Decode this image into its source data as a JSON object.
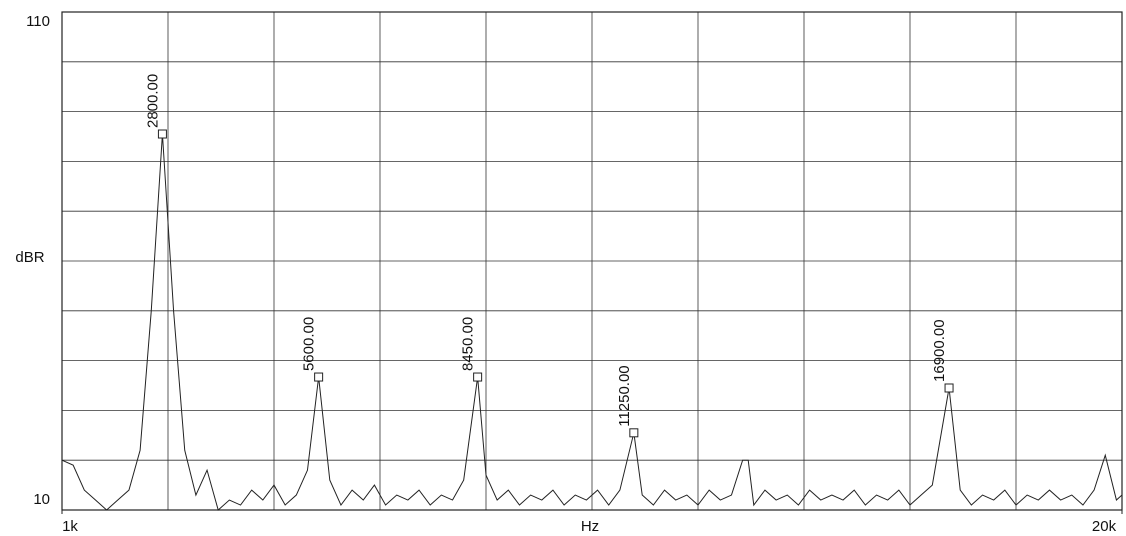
{
  "chart_data": {
    "type": "line",
    "ylabel": "dBR",
    "xlabel": "Hz",
    "xlim": [
      1000,
      20000
    ],
    "xticks": [
      {
        "value": 1000,
        "label": "1k"
      },
      {
        "value": 20000,
        "label": "20k"
      }
    ],
    "ylim": [
      10,
      110
    ],
    "yticks": [
      10,
      110
    ],
    "xgrid": [
      1000,
      2900,
      4800,
      6700,
      8600,
      10500,
      12400,
      14300,
      16200,
      18100,
      20000
    ],
    "ygrid": [
      10,
      20,
      30,
      40,
      50,
      60,
      70,
      80,
      90,
      100,
      110
    ],
    "series": [
      {
        "color": "#222",
        "x": [
          1000,
          1200,
          1400,
          1600,
          1800,
          2000,
          2200,
          2400,
          2600,
          2800,
          3000,
          3200,
          3400,
          3600,
          3800,
          4000,
          4200,
          4400,
          4600,
          4800,
          5000,
          5200,
          5400,
          5600,
          5800,
          6000,
          6200,
          6400,
          6600,
          6800,
          7000,
          7200,
          7400,
          7600,
          7800,
          8000,
          8200,
          8450,
          8600,
          8800,
          9000,
          9200,
          9400,
          9600,
          9800,
          10000,
          10200,
          10400,
          10600,
          10800,
          11000,
          11250,
          11400,
          11600,
          11800,
          12000,
          12200,
          12400,
          12600,
          12800,
          13000,
          13200,
          13300,
          13400,
          13600,
          13800,
          14000,
          14200,
          14400,
          14600,
          14800,
          15000,
          15200,
          15400,
          15600,
          15800,
          16000,
          16200,
          16400,
          16600,
          16900,
          17100,
          17300,
          17500,
          17700,
          17900,
          18100,
          18300,
          18500,
          18700,
          18900,
          19100,
          19300,
          19500,
          19700,
          19900,
          20000
        ],
        "values": [
          20,
          19,
          14,
          12,
          10,
          12,
          14,
          22,
          50,
          85.5,
          50,
          22,
          13,
          18,
          10,
          12,
          11,
          14,
          12,
          15,
          11,
          13,
          18,
          36.7,
          16,
          11,
          14,
          12,
          15,
          11,
          13,
          12,
          14,
          11,
          13,
          12,
          16,
          36.7,
          17,
          12,
          14,
          11,
          13,
          12,
          14,
          11,
          13,
          12,
          14,
          11,
          14,
          25.5,
          13,
          11,
          14,
          12,
          13,
          11,
          14,
          12,
          13,
          20,
          20,
          11,
          14,
          12,
          13,
          11,
          14,
          12,
          13,
          12,
          14,
          11,
          13,
          12,
          14,
          11,
          13,
          15,
          34.5,
          14,
          11,
          13,
          12,
          14,
          11,
          13,
          12,
          14,
          12,
          13,
          11,
          14,
          21,
          12,
          13
        ]
      }
    ],
    "annotations": [
      {
        "x": 2800,
        "y": 85.5,
        "label": "2800.00"
      },
      {
        "x": 5600,
        "y": 36.7,
        "label": "5600.00"
      },
      {
        "x": 8450,
        "y": 36.7,
        "label": "8450.00"
      },
      {
        "x": 11250,
        "y": 25.5,
        "label": "11250.00"
      },
      {
        "x": 16900,
        "y": 34.5,
        "label": "16900.00"
      }
    ]
  }
}
